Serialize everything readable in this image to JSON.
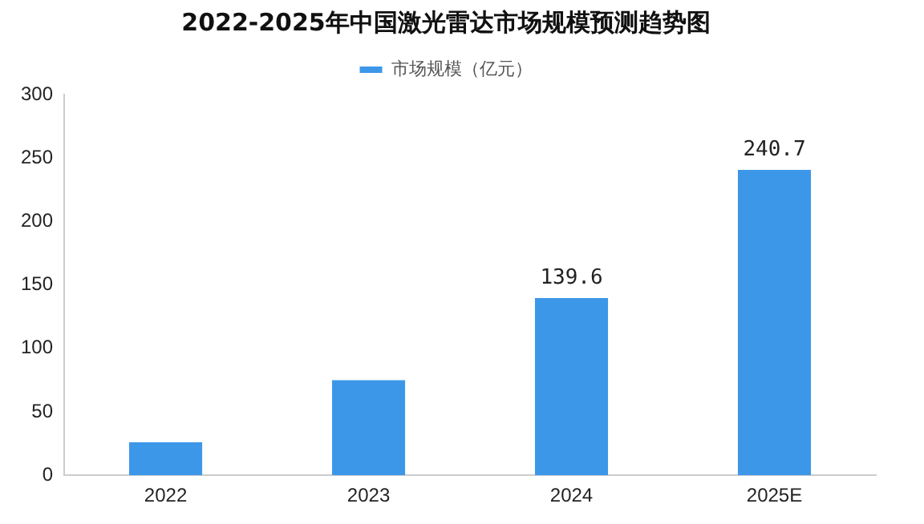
{
  "chart_data": {
    "type": "bar",
    "title": "2022-2025年中国激光雷达市场规模预测趋势图",
    "categories": [
      "2022",
      "2023",
      "2024",
      "2025E"
    ],
    "series": [
      {
        "name": "市场规模（亿元）",
        "color": "#3d97e8",
        "values": [
          26,
          75,
          139.6,
          240.7
        ],
        "value_labels": [
          null,
          null,
          "139.6",
          "240.7"
        ]
      }
    ],
    "ylim": [
      0,
      300
    ],
    "yticks": [
      0,
      50,
      100,
      150,
      200,
      250,
      300
    ],
    "grid": false,
    "legend": "top"
  }
}
